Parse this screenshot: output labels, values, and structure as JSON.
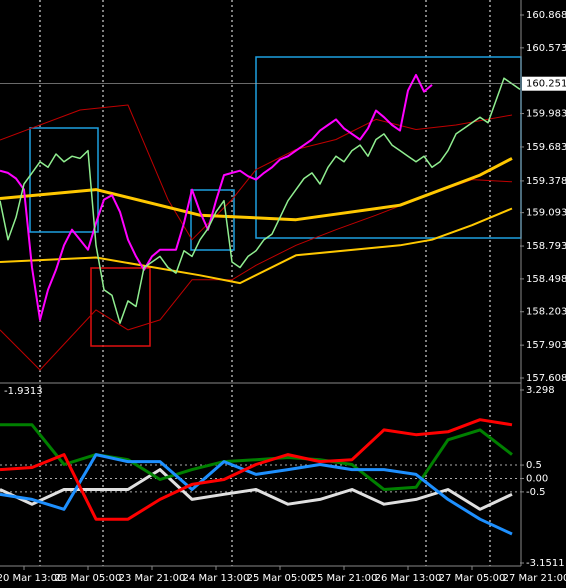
{
  "chart_data": [
    {
      "type": "line",
      "ylim": [
        157.608,
        160.868
      ],
      "yticks": [
        160.868,
        160.573,
        159.983,
        159.683,
        159.378,
        159.093,
        158.793,
        158.498,
        158.203,
        157.903,
        157.608
      ],
      "current_price": 160.251,
      "xlim": [
        0,
        65
      ],
      "xticks": [
        {
          "value": 3,
          "label": "20 Mar 13:00"
        },
        {
          "value": 11,
          "label": "23 Mar 05:00"
        },
        {
          "value": 19,
          "label": "23 Mar 21:00"
        },
        {
          "value": 27,
          "label": "24 Mar 13:00"
        },
        {
          "value": 35,
          "label": "25 Mar 05:00"
        },
        {
          "value": 43,
          "label": "25 Mar 21:00"
        },
        {
          "value": 51,
          "label": "26 Mar 13:00"
        },
        {
          "value": 59,
          "label": "27 Mar 05:00"
        },
        {
          "value": 67,
          "label": "27 Mar 21:00"
        }
      ],
      "x": [
        0,
        1,
        2,
        3,
        4,
        5,
        6,
        7,
        8,
        9,
        10,
        11,
        12,
        13,
        14,
        15,
        16,
        17,
        18,
        19,
        20,
        21,
        22,
        23,
        24,
        25,
        26,
        27,
        28,
        29,
        30,
        31,
        32,
        33,
        34,
        35,
        36,
        37,
        38,
        39,
        40,
        41,
        42,
        43,
        44,
        45,
        46,
        47,
        48,
        49,
        50,
        51,
        52,
        53,
        54,
        55,
        56,
        57,
        58,
        59,
        60,
        61,
        62,
        63,
        64,
        65
      ],
      "series": [
        {
          "color": "#c00000",
          "width": 1,
          "x": [
            0,
            10,
            16,
            21,
            24,
            29,
            32,
            37,
            42,
            47,
            52,
            57,
            64
          ],
          "values": [
            159.745,
            160.015,
            160.06,
            159.21,
            158.85,
            159.21,
            159.48,
            159.66,
            159.75,
            159.93,
            159.84,
            159.88,
            159.97
          ]
        },
        {
          "color": "#c00000",
          "width": 1,
          "x": [
            0,
            5,
            12,
            16,
            20,
            24,
            29,
            32,
            37,
            42,
            47,
            52,
            59,
            64
          ],
          "values": [
            158.04,
            157.68,
            158.22,
            158.04,
            158.13,
            158.49,
            158.49,
            158.62,
            158.8,
            158.94,
            159.07,
            159.21,
            159.39,
            159.37
          ]
        },
        {
          "color": "#ffc800",
          "width": 3,
          "x": [
            0,
            12,
            25,
            37,
            50,
            60,
            64
          ],
          "values": [
            159.22,
            159.3,
            159.07,
            159.03,
            159.16,
            159.43,
            159.58
          ]
        },
        {
          "color": "#ffc800",
          "width": 2,
          "x": [
            0,
            12,
            25,
            30,
            37,
            50,
            54,
            59,
            64
          ],
          "values": [
            158.65,
            158.69,
            158.53,
            158.46,
            158.71,
            158.8,
            158.85,
            158.98,
            159.13
          ]
        },
        {
          "color": "#ff00ff",
          "width": 2,
          "values": [
            159.47,
            159.45,
            159.4,
            159.3,
            158.6,
            158.13,
            158.4,
            158.58,
            158.8,
            158.94,
            158.85,
            158.76,
            159.0,
            159.21,
            159.25,
            159.1,
            158.85,
            158.7,
            158.58,
            158.7,
            158.76,
            158.76,
            158.76,
            159.0,
            159.3,
            159.1,
            158.94,
            159.2,
            159.43,
            159.45,
            159.47,
            159.42,
            159.39,
            159.45,
            159.5,
            159.57,
            159.6,
            159.65,
            159.7,
            159.75,
            159.83,
            159.88,
            159.93,
            159.85,
            159.8,
            159.75,
            159.85,
            160.01,
            159.95,
            159.88,
            159.83,
            160.19,
            160.33,
            160.18,
            160.24,
            null,
            null,
            null,
            null,
            null,
            null,
            null,
            null,
            null,
            null,
            null
          ]
        },
        {
          "color": "#90ee90",
          "width": 1.5,
          "values": [
            159.2,
            158.85,
            159.05,
            159.35,
            159.45,
            159.55,
            159.5,
            159.62,
            159.55,
            159.6,
            159.58,
            159.65,
            158.8,
            158.4,
            158.35,
            158.1,
            158.3,
            158.25,
            158.6,
            158.65,
            158.7,
            158.6,
            158.55,
            158.75,
            158.7,
            158.85,
            158.95,
            159.1,
            159.2,
            158.65,
            158.6,
            158.7,
            158.75,
            158.85,
            158.9,
            159.05,
            159.2,
            159.3,
            159.4,
            159.45,
            159.35,
            159.5,
            159.6,
            159.55,
            159.65,
            159.7,
            159.6,
            159.75,
            159.8,
            159.7,
            159.65,
            159.6,
            159.55,
            159.6,
            159.5,
            159.55,
            159.65,
            159.8,
            159.85,
            159.9,
            159.95,
            159.9,
            160.1,
            160.3,
            160.25,
            160.2
          ]
        }
      ]
    },
    {
      "type": "line",
      "ylim": [
        -3.1511,
        3.298
      ],
      "yticks": [
        3.298,
        0.5,
        {
          "value": 0,
          "label": "0.00"
        },
        -0.5,
        -3.1511
      ],
      "current_value": -1.9313,
      "xlim": [
        0,
        65
      ],
      "series": [
        {
          "color": "#e0e0e0",
          "width": 3,
          "x": [
            0,
            4,
            8,
            12,
            16,
            20,
            24,
            28,
            32,
            36,
            40,
            44,
            48,
            52,
            56,
            60,
            64
          ],
          "values": [
            -0.41,
            -0.96,
            -0.41,
            -0.41,
            -0.41,
            0.33,
            -0.78,
            -0.59,
            -0.41,
            -0.96,
            -0.78,
            -0.41,
            -0.96,
            -0.78,
            -0.41,
            -1.15,
            -0.59
          ]
        },
        {
          "color": "#008000",
          "width": 3,
          "x": [
            0,
            4,
            8,
            12,
            16,
            20,
            24,
            28,
            32,
            36,
            40,
            44,
            48,
            52,
            56,
            60,
            64
          ],
          "values": [
            2.0,
            2.0,
            0.52,
            0.89,
            0.7,
            -0.04,
            0.33,
            0.63,
            0.7,
            0.78,
            0.7,
            0.52,
            -0.41,
            -0.33,
            1.44,
            1.81,
            0.89
          ]
        },
        {
          "color": "#1e90ff",
          "width": 3,
          "x": [
            0,
            4,
            8,
            12,
            16,
            20,
            24,
            28,
            32,
            36,
            40,
            44,
            48,
            52,
            56,
            60,
            64
          ],
          "values": [
            -0.59,
            -0.78,
            -1.15,
            0.89,
            0.63,
            0.63,
            -0.41,
            0.63,
            0.15,
            0.33,
            0.52,
            0.33,
            0.33,
            0.15,
            -0.78,
            -1.52,
            -2.07
          ]
        },
        {
          "color": "#ff0000",
          "width": 3,
          "x": [
            0,
            4,
            8,
            12,
            16,
            20,
            24,
            28,
            32,
            36,
            40,
            44,
            48,
            52,
            56,
            60,
            64
          ],
          "values": [
            0.33,
            0.41,
            0.89,
            -1.52,
            -1.52,
            -0.78,
            -0.22,
            -0.04,
            0.52,
            0.89,
            0.63,
            0.7,
            1.81,
            1.63,
            1.74,
            2.19,
            2.0
          ]
        }
      ]
    }
  ]
}
